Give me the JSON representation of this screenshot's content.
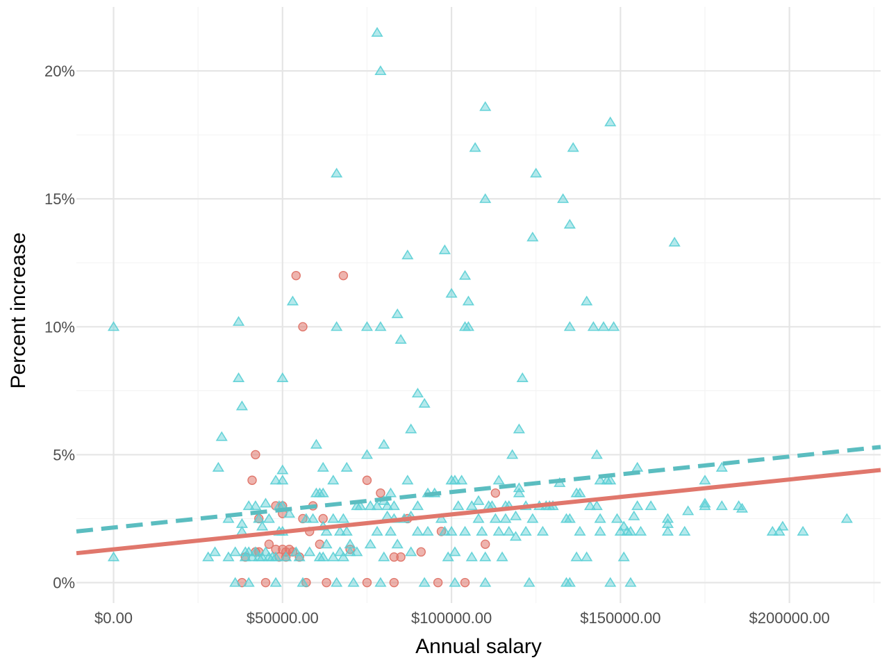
{
  "chart_data": {
    "type": "scatter",
    "xlabel": "Annual salary",
    "ylabel": "Percent increase",
    "xlim": [
      -11000,
      227000
    ],
    "ylim": [
      -0.8,
      22.5
    ],
    "x_ticks": [
      {
        "value": 0,
        "label": "$0.00"
      },
      {
        "value": 50000,
        "label": "$50000.00"
      },
      {
        "value": 100000,
        "label": "$100000.00"
      },
      {
        "value": 150000,
        "label": "$150000.00"
      },
      {
        "value": 200000,
        "label": "$200000.00"
      }
    ],
    "y_ticks": [
      {
        "value": 0,
        "label": "0%"
      },
      {
        "value": 5,
        "label": "5%"
      },
      {
        "value": 10,
        "label": "10%"
      },
      {
        "value": 15,
        "label": "15%"
      },
      {
        "value": 20,
        "label": "20%"
      }
    ],
    "grid": true,
    "legend": "none",
    "series": [
      {
        "marker": "circle",
        "color": "#e0776c",
        "points": [
          [
            38000,
            0
          ],
          [
            39000,
            1
          ],
          [
            41000,
            4
          ],
          [
            42000,
            5
          ],
          [
            42000,
            1.2
          ],
          [
            43000,
            2.5
          ],
          [
            43000,
            1.2
          ],
          [
            45000,
            0
          ],
          [
            46000,
            1.5
          ],
          [
            48000,
            3
          ],
          [
            48000,
            1.3
          ],
          [
            49000,
            1
          ],
          [
            50000,
            3
          ],
          [
            50000,
            2.7
          ],
          [
            50000,
            1.3
          ],
          [
            51000,
            1.2
          ],
          [
            51000,
            1
          ],
          [
            52000,
            1.3
          ],
          [
            53000,
            1.2
          ],
          [
            54000,
            12
          ],
          [
            55000,
            1
          ],
          [
            56000,
            10
          ],
          [
            56000,
            2.5
          ],
          [
            57000,
            0
          ],
          [
            58000,
            2
          ],
          [
            59000,
            3
          ],
          [
            61000,
            1.5
          ],
          [
            62000,
            2.5
          ],
          [
            63000,
            0
          ],
          [
            68000,
            12
          ],
          [
            70000,
            1.3
          ],
          [
            75000,
            4
          ],
          [
            75000,
            0
          ],
          [
            79000,
            3.5
          ],
          [
            83000,
            1
          ],
          [
            83000,
            0
          ],
          [
            85000,
            1
          ],
          [
            87000,
            2.5
          ],
          [
            91000,
            1.2
          ],
          [
            96000,
            0
          ],
          [
            97000,
            2
          ],
          [
            104000,
            0
          ],
          [
            110000,
            1.5
          ],
          [
            113000,
            3.5
          ]
        ]
      },
      {
        "marker": "triangle",
        "color": "#5bcfd5",
        "points": [
          [
            0,
            10
          ],
          [
            0,
            1
          ],
          [
            28000,
            1
          ],
          [
            30000,
            1.2
          ],
          [
            31000,
            4.5
          ],
          [
            32000,
            5.7
          ],
          [
            34000,
            1
          ],
          [
            34000,
            2.5
          ],
          [
            36000,
            1.2
          ],
          [
            36000,
            0
          ],
          [
            37000,
            10.2
          ],
          [
            37000,
            8
          ],
          [
            38000,
            6.9
          ],
          [
            38000,
            2.3
          ],
          [
            38000,
            2
          ],
          [
            39000,
            1.2
          ],
          [
            39000,
            1
          ],
          [
            40000,
            0
          ],
          [
            40000,
            1.2
          ],
          [
            40000,
            3
          ],
          [
            41000,
            1
          ],
          [
            42000,
            3
          ],
          [
            42000,
            1.2
          ],
          [
            43000,
            1
          ],
          [
            43000,
            2.5
          ],
          [
            44000,
            2.2
          ],
          [
            44000,
            1
          ],
          [
            45000,
            3.1
          ],
          [
            45000,
            1.2
          ],
          [
            46000,
            2.5
          ],
          [
            46000,
            1
          ],
          [
            47000,
            1
          ],
          [
            48000,
            4
          ],
          [
            48000,
            1
          ],
          [
            48000,
            0
          ],
          [
            49000,
            3
          ],
          [
            49000,
            2
          ],
          [
            50000,
            8
          ],
          [
            50000,
            4.4
          ],
          [
            50000,
            4
          ],
          [
            50000,
            3
          ],
          [
            50000,
            2
          ],
          [
            51000,
            1
          ],
          [
            52000,
            2.7
          ],
          [
            53000,
            11
          ],
          [
            54000,
            1.2
          ],
          [
            55000,
            1
          ],
          [
            56000,
            0
          ],
          [
            57000,
            2.5
          ],
          [
            58000,
            1.2
          ],
          [
            59000,
            2.5
          ],
          [
            60000,
            5.4
          ],
          [
            60000,
            3.5
          ],
          [
            61000,
            3.5
          ],
          [
            61000,
            1
          ],
          [
            62000,
            4.5
          ],
          [
            62000,
            3.5
          ],
          [
            62000,
            2.2
          ],
          [
            62000,
            1
          ],
          [
            63000,
            2
          ],
          [
            63000,
            1.5
          ],
          [
            65000,
            4
          ],
          [
            65000,
            2.5
          ],
          [
            65000,
            1
          ],
          [
            66000,
            16
          ],
          [
            66000,
            10
          ],
          [
            66000,
            0
          ],
          [
            67000,
            2
          ],
          [
            67000,
            1.2
          ],
          [
            68000,
            2.5
          ],
          [
            68000,
            1
          ],
          [
            69000,
            4.5
          ],
          [
            69000,
            2
          ],
          [
            70000,
            1.5
          ],
          [
            70000,
            1.2
          ],
          [
            71000,
            0
          ],
          [
            72000,
            3
          ],
          [
            72000,
            1.2
          ],
          [
            73000,
            3
          ],
          [
            75000,
            10
          ],
          [
            75000,
            5
          ],
          [
            76000,
            3
          ],
          [
            76000,
            1.5
          ],
          [
            78000,
            21.5
          ],
          [
            78000,
            3
          ],
          [
            78000,
            2
          ],
          [
            79000,
            20
          ],
          [
            79000,
            10
          ],
          [
            79000,
            0
          ],
          [
            80000,
            5.4
          ],
          [
            80000,
            3.2
          ],
          [
            80000,
            1
          ],
          [
            81000,
            3
          ],
          [
            81000,
            2.6
          ],
          [
            82000,
            3.5
          ],
          [
            82000,
            2
          ],
          [
            83000,
            3
          ],
          [
            83000,
            2.5
          ],
          [
            84000,
            10.5
          ],
          [
            84000,
            1.5
          ],
          [
            85000,
            9.5
          ],
          [
            86000,
            2.5
          ],
          [
            87000,
            12.8
          ],
          [
            87000,
            4
          ],
          [
            88000,
            6
          ],
          [
            88000,
            2.6
          ],
          [
            88000,
            1.2
          ],
          [
            90000,
            3
          ],
          [
            90000,
            2
          ],
          [
            90000,
            7.4
          ],
          [
            92000,
            7
          ],
          [
            92000,
            0
          ],
          [
            93000,
            3.5
          ],
          [
            93000,
            2
          ],
          [
            95000,
            3.5
          ],
          [
            97000,
            2.5
          ],
          [
            98000,
            13
          ],
          [
            98000,
            2
          ],
          [
            99000,
            1
          ],
          [
            100000,
            11.3
          ],
          [
            100000,
            2
          ],
          [
            100000,
            4
          ],
          [
            101000,
            4
          ],
          [
            101000,
            1.2
          ],
          [
            101000,
            0
          ],
          [
            102000,
            3
          ],
          [
            103000,
            4
          ],
          [
            104000,
            12
          ],
          [
            104000,
            10
          ],
          [
            104000,
            2
          ],
          [
            105000,
            11
          ],
          [
            105000,
            10
          ],
          [
            106000,
            3
          ],
          [
            106000,
            1
          ],
          [
            107000,
            17
          ],
          [
            108000,
            3.2
          ],
          [
            108000,
            2.5
          ],
          [
            109000,
            2
          ],
          [
            110000,
            18.6
          ],
          [
            110000,
            15
          ],
          [
            110000,
            1
          ],
          [
            110000,
            0
          ],
          [
            111000,
            3
          ],
          [
            112000,
            3
          ],
          [
            113000,
            2.5
          ],
          [
            114000,
            4
          ],
          [
            114000,
            2
          ],
          [
            115000,
            1
          ],
          [
            116000,
            3
          ],
          [
            116000,
            2.5
          ],
          [
            117000,
            3
          ],
          [
            117000,
            2
          ],
          [
            118000,
            5
          ],
          [
            119000,
            2.6
          ],
          [
            119000,
            1.8
          ],
          [
            120000,
            6
          ],
          [
            120000,
            3.7
          ],
          [
            120000,
            3.5
          ],
          [
            121000,
            8
          ],
          [
            122000,
            3
          ],
          [
            122000,
            2
          ],
          [
            123000,
            0
          ],
          [
            124000,
            13.5
          ],
          [
            124000,
            2.5
          ],
          [
            125000,
            16
          ],
          [
            126000,
            3
          ],
          [
            127000,
            2
          ],
          [
            128000,
            3
          ],
          [
            129000,
            3
          ],
          [
            130000,
            3
          ],
          [
            132000,
            3.9
          ],
          [
            133000,
            15
          ],
          [
            134000,
            2.5
          ],
          [
            134000,
            0
          ],
          [
            135000,
            14
          ],
          [
            135000,
            10
          ],
          [
            135000,
            2.5
          ],
          [
            135000,
            0
          ],
          [
            136000,
            17
          ],
          [
            137000,
            3.5
          ],
          [
            137000,
            1
          ],
          [
            138000,
            3.5
          ],
          [
            138000,
            2
          ],
          [
            140000,
            11
          ],
          [
            140000,
            1
          ],
          [
            141000,
            3
          ],
          [
            142000,
            10
          ],
          [
            143000,
            5
          ],
          [
            143000,
            3
          ],
          [
            144000,
            4
          ],
          [
            144000,
            2.5
          ],
          [
            144000,
            2
          ],
          [
            145000,
            10
          ],
          [
            146000,
            4
          ],
          [
            147000,
            18
          ],
          [
            147000,
            4
          ],
          [
            147000,
            0
          ],
          [
            148000,
            10
          ],
          [
            149000,
            2.5
          ],
          [
            150000,
            2
          ],
          [
            151000,
            2.2
          ],
          [
            151000,
            1
          ],
          [
            152000,
            2
          ],
          [
            153000,
            2
          ],
          [
            153000,
            0
          ],
          [
            154000,
            2.6
          ],
          [
            155000,
            4.5
          ],
          [
            155000,
            3
          ],
          [
            156000,
            2
          ],
          [
            159000,
            3
          ],
          [
            164000,
            2.5
          ],
          [
            164000,
            2.3
          ],
          [
            164000,
            2
          ],
          [
            166000,
            13.3
          ],
          [
            169000,
            2
          ],
          [
            170000,
            2.8
          ],
          [
            175000,
            4
          ],
          [
            175000,
            3.1
          ],
          [
            175000,
            3
          ],
          [
            180000,
            4.5
          ],
          [
            180000,
            3
          ],
          [
            185000,
            3
          ],
          [
            186000,
            2.9
          ],
          [
            195000,
            2
          ],
          [
            197000,
            2
          ],
          [
            198000,
            2.2
          ],
          [
            204000,
            2
          ],
          [
            217000,
            2.5
          ]
        ]
      }
    ],
    "trend_lines": [
      {
        "style": "solid",
        "color": "#e0776c",
        "start": [
          -11000,
          1.15
        ],
        "end": [
          227000,
          4.4
        ]
      },
      {
        "style": "dashed",
        "color": "#5bbdc0",
        "start": [
          -11000,
          2.0
        ],
        "end": [
          227000,
          5.3
        ]
      }
    ]
  }
}
